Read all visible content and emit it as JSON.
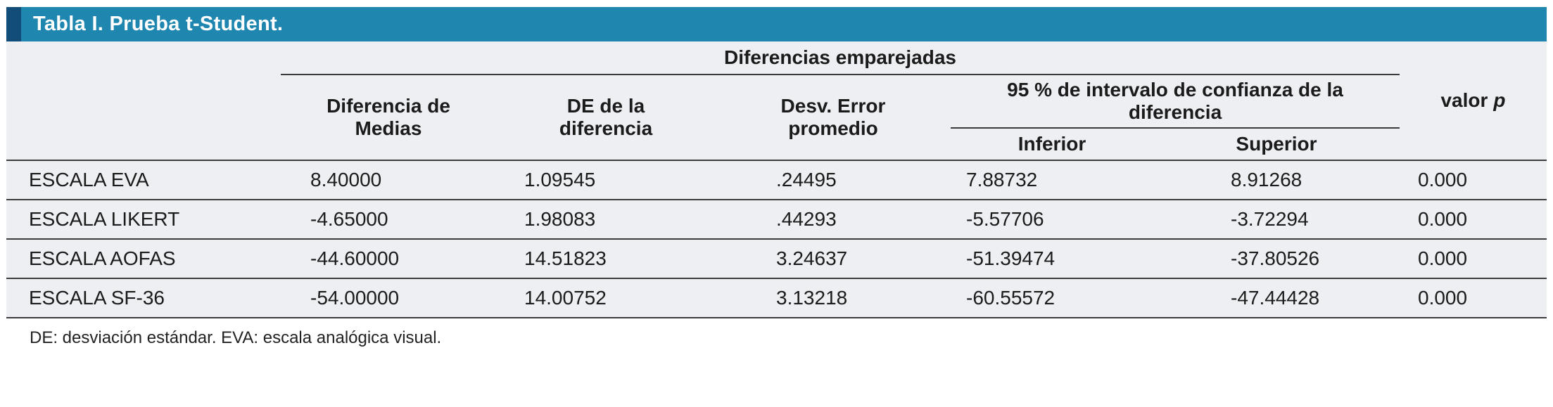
{
  "title": "Tabla I. Prueba t-Student.",
  "header": {
    "group": "Diferencias emparejadas",
    "diff_means": "Diferencia de Medias",
    "sd_diff": "DE de la diferencia",
    "se_mean": "Desv. Error promedio",
    "ci": "95 % de intervalo de confianza de la diferencia",
    "ci_lower": "Inferior",
    "ci_upper": "Superior",
    "p_label": "valor",
    "p_symbol": "p"
  },
  "rows": [
    {
      "label": "ESCALA EVA",
      "diff": "8.40000",
      "sd": "1.09545",
      "se": ".24495",
      "lower": "7.88732",
      "upper": "8.91268",
      "p": "0.000"
    },
    {
      "label": "ESCALA LIKERT",
      "diff": "-4.65000",
      "sd": "1.98083",
      "se": ".44293",
      "lower": "-5.57706",
      "upper": "-3.72294",
      "p": "0.000"
    },
    {
      "label": "ESCALA AOFAS",
      "diff": "-44.60000",
      "sd": "14.51823",
      "se": "3.24637",
      "lower": "-51.39474",
      "upper": "-37.80526",
      "p": "0.000"
    },
    {
      "label": "ESCALA SF-36",
      "diff": "-54.00000",
      "sd": "14.00752",
      "se": "3.13218",
      "lower": "-60.55572",
      "upper": "-47.44428",
      "p": "0.000"
    }
  ],
  "footnote": "DE: desviación estándar. EVA: escala analógica visual.",
  "colors": {
    "title_bar_bg": "#1e86af",
    "title_accent": "#114d78",
    "table_bg": "#edeff3",
    "rule": "#3c3c3c"
  }
}
